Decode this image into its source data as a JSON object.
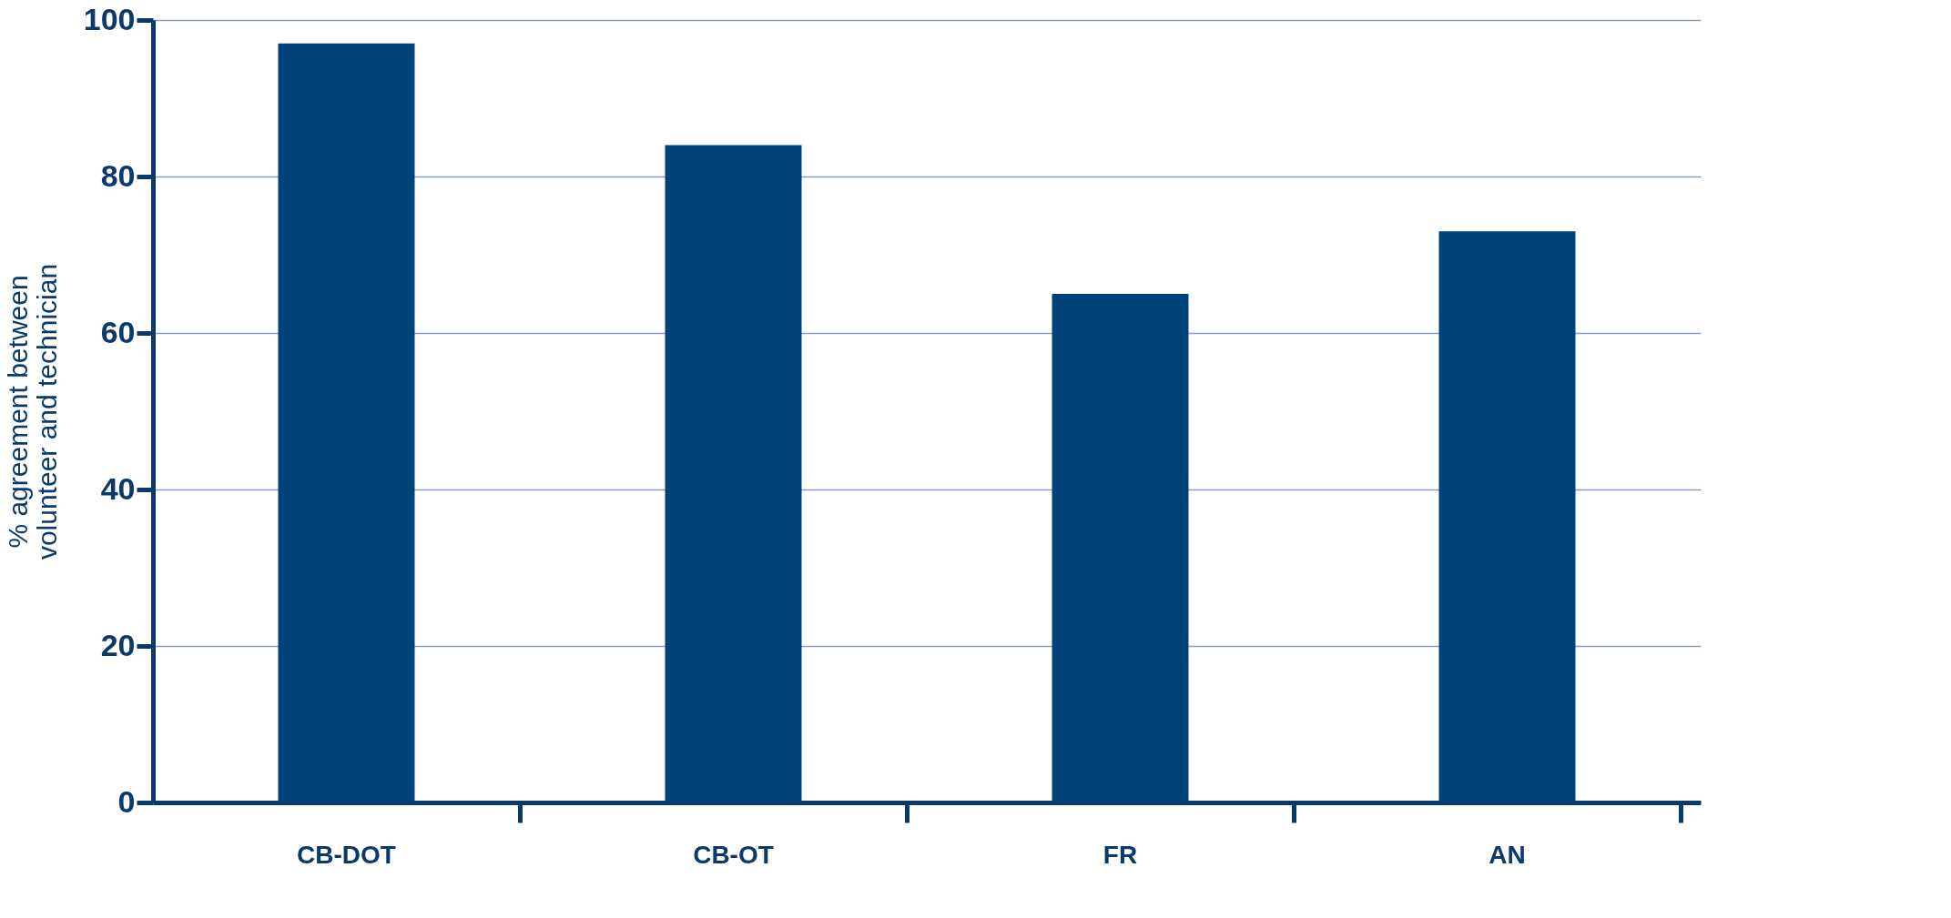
{
  "chart_data": {
    "type": "bar",
    "ylabel": "% agreement between\nvolunteer and technician",
    "categories": [
      "CB-DOT",
      "CB-OT",
      "FR",
      "AN"
    ],
    "values": [
      97,
      84,
      65,
      73
    ],
    "color": "#00437a",
    "ylim": [
      0,
      100
    ],
    "yticks": [
      0,
      20,
      40,
      60,
      80,
      100
    ],
    "grid": "y"
  }
}
